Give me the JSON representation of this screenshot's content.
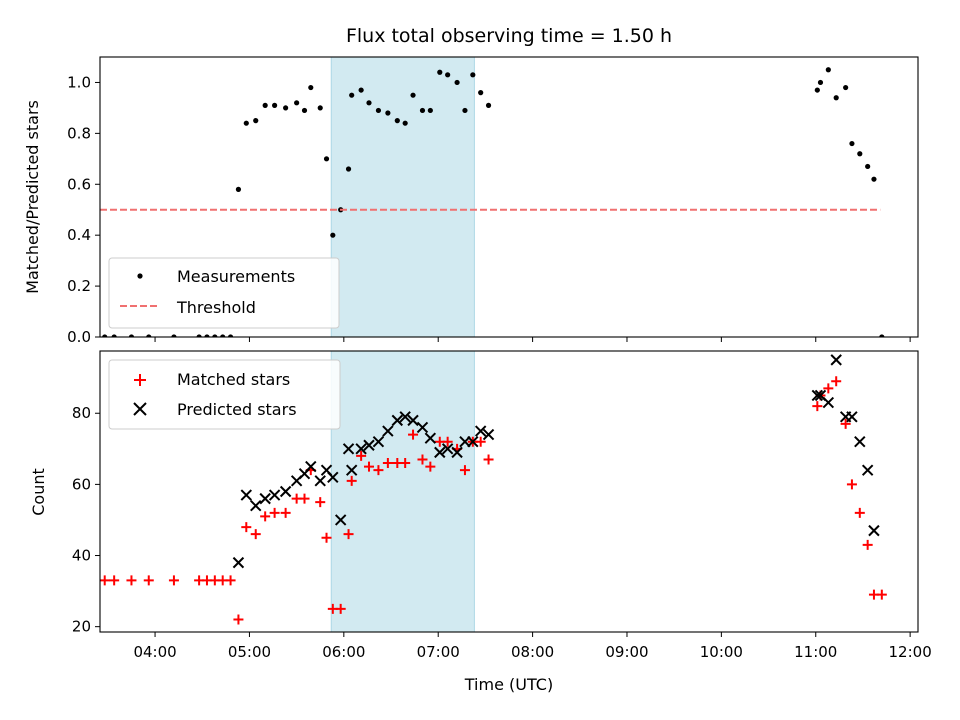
{
  "chart_data": {
    "title": "Flux total observing time = 1.50 h",
    "xlabel": "Time (UTC)",
    "xlim": [
      "03:25",
      "12:05"
    ],
    "x_ticks": [
      "04:00",
      "05:00",
      "06:00",
      "07:00",
      "08:00",
      "09:00",
      "10:00",
      "11:00",
      "12:00"
    ],
    "highlight_span": {
      "start": "05:52",
      "end": "07:23",
      "color": "#add8e6"
    },
    "panels": [
      {
        "type": "scatter",
        "ylabel": "Matched/Predicted stars",
        "ylim": [
          0,
          1.1
        ],
        "y_ticks": [
          0.0,
          0.2,
          0.4,
          0.6,
          0.8,
          1.0
        ],
        "legend": "lower-left",
        "series": [
          {
            "name": "Measurements",
            "marker": "dot",
            "color": "#000000",
            "points": [
              [
                "03:28",
                0.0
              ],
              [
                "03:34",
                0.0
              ],
              [
                "03:45",
                0.0
              ],
              [
                "03:56",
                0.0
              ],
              [
                "04:12",
                0.0
              ],
              [
                "04:28",
                0.0
              ],
              [
                "04:33",
                0.0
              ],
              [
                "04:38",
                0.0
              ],
              [
                "04:43",
                0.0
              ],
              [
                "04:48",
                0.0
              ],
              [
                "04:53",
                0.58
              ],
              [
                "04:58",
                0.84
              ],
              [
                "05:04",
                0.85
              ],
              [
                "05:10",
                0.91
              ],
              [
                "05:16",
                0.91
              ],
              [
                "05:23",
                0.9
              ],
              [
                "05:30",
                0.92
              ],
              [
                "05:35",
                0.89
              ],
              [
                "05:39",
                0.98
              ],
              [
                "05:45",
                0.9
              ],
              [
                "05:49",
                0.7
              ],
              [
                "05:53",
                0.4
              ],
              [
                "05:58",
                0.5
              ],
              [
                "06:03",
                0.66
              ],
              [
                "06:05",
                0.95
              ],
              [
                "06:11",
                0.97
              ],
              [
                "06:16",
                0.92
              ],
              [
                "06:22",
                0.89
              ],
              [
                "06:28",
                0.88
              ],
              [
                "06:34",
                0.85
              ],
              [
                "06:39",
                0.84
              ],
              [
                "06:44",
                0.95
              ],
              [
                "06:50",
                0.89
              ],
              [
                "06:55",
                0.89
              ],
              [
                "07:01",
                1.04
              ],
              [
                "07:06",
                1.03
              ],
              [
                "07:12",
                1.0
              ],
              [
                "07:17",
                0.89
              ],
              [
                "07:22",
                1.03
              ],
              [
                "07:27",
                0.96
              ],
              [
                "07:32",
                0.91
              ],
              [
                "11:01",
                0.97
              ],
              [
                "11:03",
                1.0
              ],
              [
                "11:08",
                1.05
              ],
              [
                "11:13",
                0.94
              ],
              [
                "11:19",
                0.98
              ],
              [
                "11:23",
                0.76
              ],
              [
                "11:28",
                0.72
              ],
              [
                "11:33",
                0.67
              ],
              [
                "11:37",
                0.62
              ],
              [
                "11:42",
                0.0
              ]
            ]
          },
          {
            "name": "Threshold",
            "type": "line",
            "style": "dashed",
            "color": "#f07070",
            "value": 0.5,
            "x_range": [
              "03:25",
              "11:41"
            ]
          }
        ]
      },
      {
        "type": "scatter",
        "ylabel": "Count",
        "ylim": [
          18.5,
          97.5
        ],
        "y_ticks": [
          20,
          40,
          60,
          80
        ],
        "legend": "upper-left",
        "series": [
          {
            "name": "Matched stars",
            "marker": "plus",
            "color": "#ff0000",
            "points": [
              [
                "03:28",
                33
              ],
              [
                "03:34",
                33
              ],
              [
                "03:45",
                33
              ],
              [
                "03:56",
                33
              ],
              [
                "04:12",
                33
              ],
              [
                "04:28",
                33
              ],
              [
                "04:33",
                33
              ],
              [
                "04:38",
                33
              ],
              [
                "04:43",
                33
              ],
              [
                "04:48",
                33
              ],
              [
                "04:53",
                22
              ],
              [
                "04:58",
                48
              ],
              [
                "05:04",
                46
              ],
              [
                "05:10",
                51
              ],
              [
                "05:16",
                52
              ],
              [
                "05:23",
                52
              ],
              [
                "05:30",
                56
              ],
              [
                "05:35",
                56
              ],
              [
                "05:39",
                64
              ],
              [
                "05:45",
                55
              ],
              [
                "05:49",
                45
              ],
              [
                "05:53",
                25
              ],
              [
                "05:58",
                25
              ],
              [
                "06:03",
                46
              ],
              [
                "06:05",
                61
              ],
              [
                "06:11",
                68
              ],
              [
                "06:16",
                65
              ],
              [
                "06:22",
                64
              ],
              [
                "06:28",
                66
              ],
              [
                "06:34",
                66
              ],
              [
                "06:39",
                66
              ],
              [
                "06:44",
                74
              ],
              [
                "06:50",
                67
              ],
              [
                "06:55",
                65
              ],
              [
                "07:01",
                72
              ],
              [
                "07:06",
                72
              ],
              [
                "07:12",
                70
              ],
              [
                "07:17",
                64
              ],
              [
                "07:22",
                72
              ],
              [
                "07:27",
                72
              ],
              [
                "07:32",
                67
              ],
              [
                "11:01",
                82
              ],
              [
                "11:03",
                85
              ],
              [
                "11:08",
                87
              ],
              [
                "11:13",
                89
              ],
              [
                "11:19",
                77
              ],
              [
                "11:23",
                60
              ],
              [
                "11:28",
                52
              ],
              [
                "11:33",
                43
              ],
              [
                "11:37",
                29
              ],
              [
                "11:42",
                29
              ]
            ]
          },
          {
            "name": "Predicted stars",
            "marker": "x",
            "color": "#000000",
            "points": [
              [
                "04:53",
                38
              ],
              [
                "04:58",
                57
              ],
              [
                "05:04",
                54
              ],
              [
                "05:10",
                56
              ],
              [
                "05:16",
                57
              ],
              [
                "05:23",
                58
              ],
              [
                "05:30",
                61
              ],
              [
                "05:35",
                63
              ],
              [
                "05:39",
                65
              ],
              [
                "05:45",
                61
              ],
              [
                "05:49",
                64
              ],
              [
                "05:53",
                62
              ],
              [
                "05:58",
                50
              ],
              [
                "06:03",
                70
              ],
              [
                "06:05",
                64
              ],
              [
                "06:11",
                70
              ],
              [
                "06:16",
                71
              ],
              [
                "06:22",
                72
              ],
              [
                "06:28",
                75
              ],
              [
                "06:34",
                78
              ],
              [
                "06:39",
                79
              ],
              [
                "06:44",
                78
              ],
              [
                "06:50",
                76
              ],
              [
                "06:55",
                73
              ],
              [
                "07:01",
                69
              ],
              [
                "07:06",
                70
              ],
              [
                "07:12",
                69
              ],
              [
                "07:17",
                72
              ],
              [
                "07:22",
                72
              ],
              [
                "07:27",
                75
              ],
              [
                "07:32",
                74
              ],
              [
                "11:01",
                85
              ],
              [
                "11:03",
                85
              ],
              [
                "11:08",
                83
              ],
              [
                "11:13",
                95
              ],
              [
                "11:19",
                79
              ],
              [
                "11:23",
                79
              ],
              [
                "11:28",
                72
              ],
              [
                "11:33",
                64
              ],
              [
                "11:37",
                47
              ]
            ]
          }
        ]
      }
    ]
  }
}
